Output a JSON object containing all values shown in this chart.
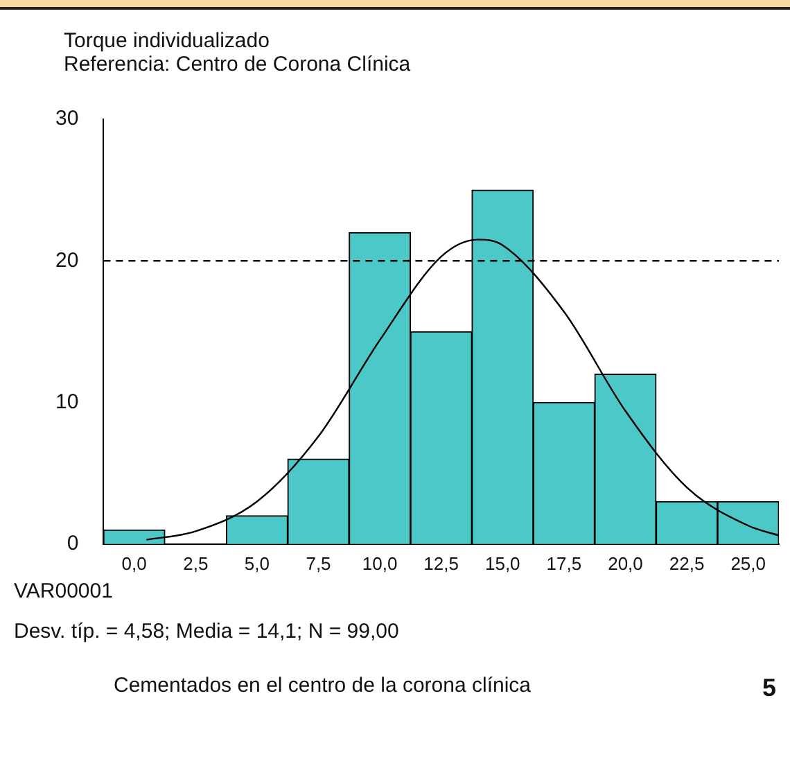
{
  "chart_data": {
    "type": "histogram",
    "title": "Torque individualizado",
    "subtitle": "Referencia: Centro de Corona Clínica",
    "xlabel": "VAR00001",
    "bins": [
      -1.25,
      1.25,
      3.75,
      6.25,
      8.75,
      11.25,
      13.75,
      16.25,
      18.75,
      21.25,
      23.75,
      26.25
    ],
    "values": [
      1,
      0,
      2,
      6,
      22,
      15,
      25,
      10,
      12,
      3,
      3
    ],
    "color": "#4dc8c8",
    "series": [
      {
        "type": "line",
        "color": "#000000",
        "x": [
          0.5,
          2.5,
          5,
          7.5,
          10,
          12.5,
          14,
          15,
          17.5,
          20,
          22.5,
          25,
          26.25
        ],
        "values": [
          0.3,
          0.9,
          3,
          7.6,
          14.4,
          20.3,
          21.5,
          21.1,
          16.4,
          9.4,
          4,
          1.3,
          0.6
        ],
        "line_style": "solid",
        "marker": "none"
      }
    ],
    "xlim": [
      -1.25,
      26.25
    ],
    "xticks": [
      {
        "value": 0,
        "label": "0,0"
      },
      {
        "value": 2.5,
        "label": "2,5"
      },
      {
        "value": 5,
        "label": "5,0"
      },
      {
        "value": 7.5,
        "label": "7,5"
      },
      {
        "value": 10,
        "label": "10,0"
      },
      {
        "value": 12.5,
        "label": "12,5"
      },
      {
        "value": 15,
        "label": "15,0"
      },
      {
        "value": 17.5,
        "label": "17,5"
      },
      {
        "value": 20,
        "label": "20,0"
      },
      {
        "value": 22.5,
        "label": "22,5"
      },
      {
        "value": 25,
        "label": "25,0"
      }
    ],
    "ylim": [
      0,
      30
    ],
    "yticks": [
      0,
      10,
      20,
      30
    ],
    "ref_lines": [
      {
        "axis": "y",
        "value": 20,
        "line_style": "dashed",
        "color": "#000000"
      }
    ],
    "grid": false,
    "legend": false,
    "annotations": [
      "Desv. típ. = 4,58; Media = 14,1; N = 99,00",
      "Cementados en el centro de la corona clínica",
      "5"
    ]
  }
}
